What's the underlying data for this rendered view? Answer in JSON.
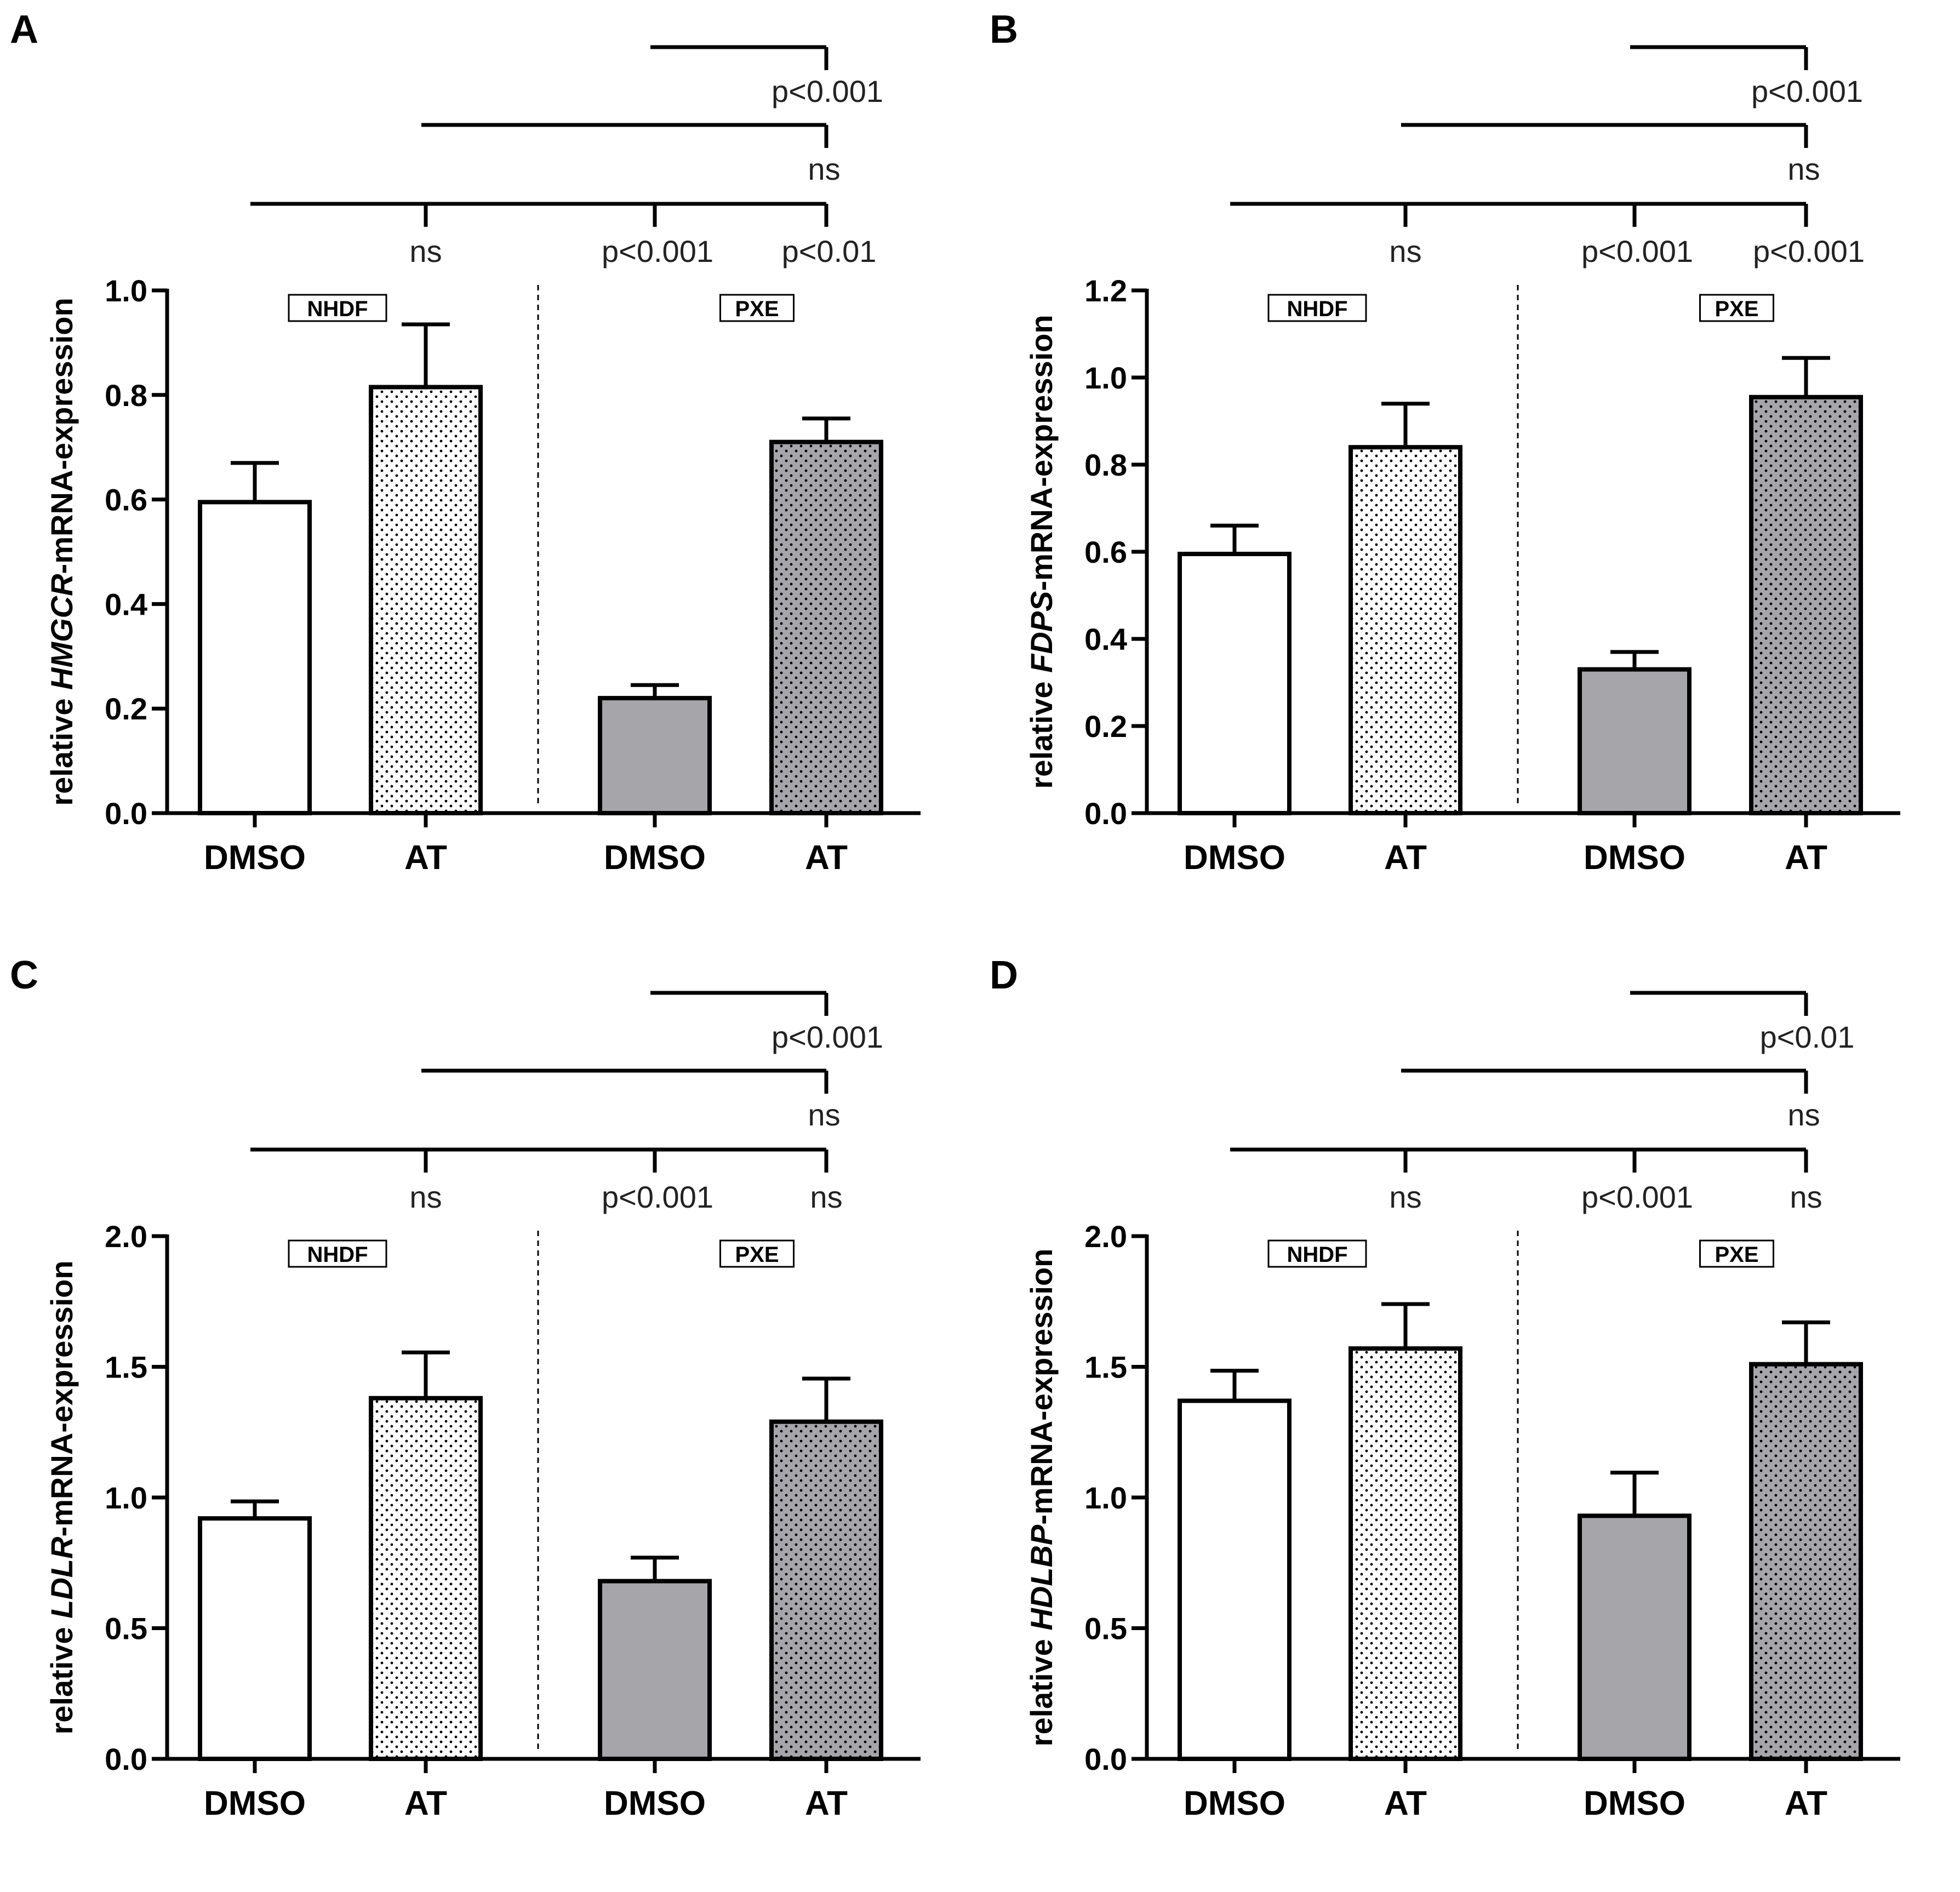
{
  "chart_data": [
    {
      "panel": "A",
      "type": "bar",
      "gene": "HMGCR",
      "ylabel_prefix": "relative ",
      "ylabel_suffix": "-mRNA-expression",
      "ylim": [
        0,
        1.0
      ],
      "yticks": [
        "0.0",
        "0.2",
        "0.4",
        "0.6",
        "0.8",
        "1.0"
      ],
      "ytick_values": [
        0,
        0.2,
        0.4,
        0.6,
        0.8,
        1.0
      ],
      "categories": [
        "DMSO",
        "AT",
        "DMSO",
        "AT"
      ],
      "groups": [
        {
          "name": "NHDF",
          "categories": [
            0,
            1
          ]
        },
        {
          "name": "PXE",
          "categories": [
            2,
            3
          ]
        }
      ],
      "values": [
        0.595,
        0.815,
        0.22,
        0.71
      ],
      "errors": [
        0.075,
        0.12,
        0.025,
        0.045
      ],
      "fills": [
        "white",
        "white-dotted",
        "#a5a5aa",
        "#a5a5aa-dotted"
      ],
      "comparisons": [
        {
          "from": 2,
          "to": 3,
          "label": "p<0.001",
          "level": 3
        },
        {
          "from": 1,
          "to": 3,
          "label": "ns",
          "level": 2
        },
        {
          "from": 0,
          "to": 1,
          "label": "ns",
          "level": 1
        },
        {
          "from": 0,
          "to": 2,
          "label": "p<0.001",
          "level": 1
        },
        {
          "from": 0,
          "to": 3,
          "label": "p<0.01",
          "level": 1
        }
      ]
    },
    {
      "panel": "B",
      "type": "bar",
      "gene": "FDPS",
      "ylabel_prefix": "relative ",
      "ylabel_suffix": "-mRNA-expression",
      "ylim": [
        0,
        1.2
      ],
      "yticks": [
        "0.0",
        "0.2",
        "0.4",
        "0.6",
        "0.8",
        "1.0",
        "1.2"
      ],
      "ytick_values": [
        0,
        0.2,
        0.4,
        0.6,
        0.8,
        1.0,
        1.2
      ],
      "categories": [
        "DMSO",
        "AT",
        "DMSO",
        "AT"
      ],
      "groups": [
        {
          "name": "NHDF",
          "categories": [
            0,
            1
          ]
        },
        {
          "name": "PXE",
          "categories": [
            2,
            3
          ]
        }
      ],
      "values": [
        0.595,
        0.84,
        0.33,
        0.955
      ],
      "errors": [
        0.065,
        0.1,
        0.04,
        0.09
      ],
      "fills": [
        "white",
        "white-dotted",
        "#a5a5aa",
        "#a5a5aa-dotted"
      ],
      "comparisons": [
        {
          "from": 2,
          "to": 3,
          "label": "p<0.001",
          "level": 3
        },
        {
          "from": 1,
          "to": 3,
          "label": "ns",
          "level": 2
        },
        {
          "from": 0,
          "to": 1,
          "label": "ns",
          "level": 1
        },
        {
          "from": 0,
          "to": 2,
          "label": "p<0.001",
          "level": 1
        },
        {
          "from": 0,
          "to": 3,
          "label": "p<0.001",
          "level": 1
        }
      ]
    },
    {
      "panel": "C",
      "type": "bar",
      "gene": "LDLR",
      "ylabel_prefix": "relative ",
      "ylabel_suffix": "-mRNA-expression",
      "ylim": [
        0,
        2.0
      ],
      "yticks": [
        "0.0",
        "0.5",
        "1.0",
        "1.5",
        "2.0"
      ],
      "ytick_values": [
        0,
        0.5,
        1.0,
        1.5,
        2.0
      ],
      "categories": [
        "DMSO",
        "AT",
        "DMSO",
        "AT"
      ],
      "groups": [
        {
          "name": "NHDF",
          "categories": [
            0,
            1
          ]
        },
        {
          "name": "PXE",
          "categories": [
            2,
            3
          ]
        }
      ],
      "values": [
        0.92,
        1.38,
        0.68,
        1.29
      ],
      "errors": [
        0.065,
        0.175,
        0.09,
        0.165
      ],
      "fills": [
        "white",
        "white-dotted",
        "#a5a5aa",
        "#a5a5aa-dotted"
      ],
      "comparisons": [
        {
          "from": 2,
          "to": 3,
          "label": "p<0.001",
          "level": 3
        },
        {
          "from": 1,
          "to": 3,
          "label": "ns",
          "level": 2
        },
        {
          "from": 0,
          "to": 1,
          "label": "ns",
          "level": 1
        },
        {
          "from": 0,
          "to": 2,
          "label": "p<0.001",
          "level": 1
        },
        {
          "from": 0,
          "to": 3,
          "label": "ns",
          "level": 1
        }
      ]
    },
    {
      "panel": "D",
      "type": "bar",
      "gene": "HDLBP",
      "ylabel_prefix": "relative ",
      "ylabel_suffix": "-mRNA-expression",
      "ylim": [
        0,
        2.0
      ],
      "yticks": [
        "0.0",
        "0.5",
        "1.0",
        "1.5",
        "2.0"
      ],
      "ytick_values": [
        0,
        0.5,
        1.0,
        1.5,
        2.0
      ],
      "categories": [
        "DMSO",
        "AT",
        "DMSO",
        "AT"
      ],
      "groups": [
        {
          "name": "NHDF",
          "categories": [
            0,
            1
          ]
        },
        {
          "name": "PXE",
          "categories": [
            2,
            3
          ]
        }
      ],
      "values": [
        1.37,
        1.57,
        0.93,
        1.51
      ],
      "errors": [
        0.115,
        0.17,
        0.165,
        0.16
      ],
      "fills": [
        "white",
        "white-dotted",
        "#a5a5aa",
        "#a5a5aa-dotted"
      ],
      "comparisons": [
        {
          "from": 2,
          "to": 3,
          "label": "p<0.01",
          "level": 3
        },
        {
          "from": 1,
          "to": 3,
          "label": "ns",
          "level": 2
        },
        {
          "from": 0,
          "to": 1,
          "label": "ns",
          "level": 1
        },
        {
          "from": 0,
          "to": 2,
          "label": "p<0.001",
          "level": 1
        },
        {
          "from": 0,
          "to": 3,
          "label": "ns",
          "level": 1
        }
      ]
    }
  ]
}
